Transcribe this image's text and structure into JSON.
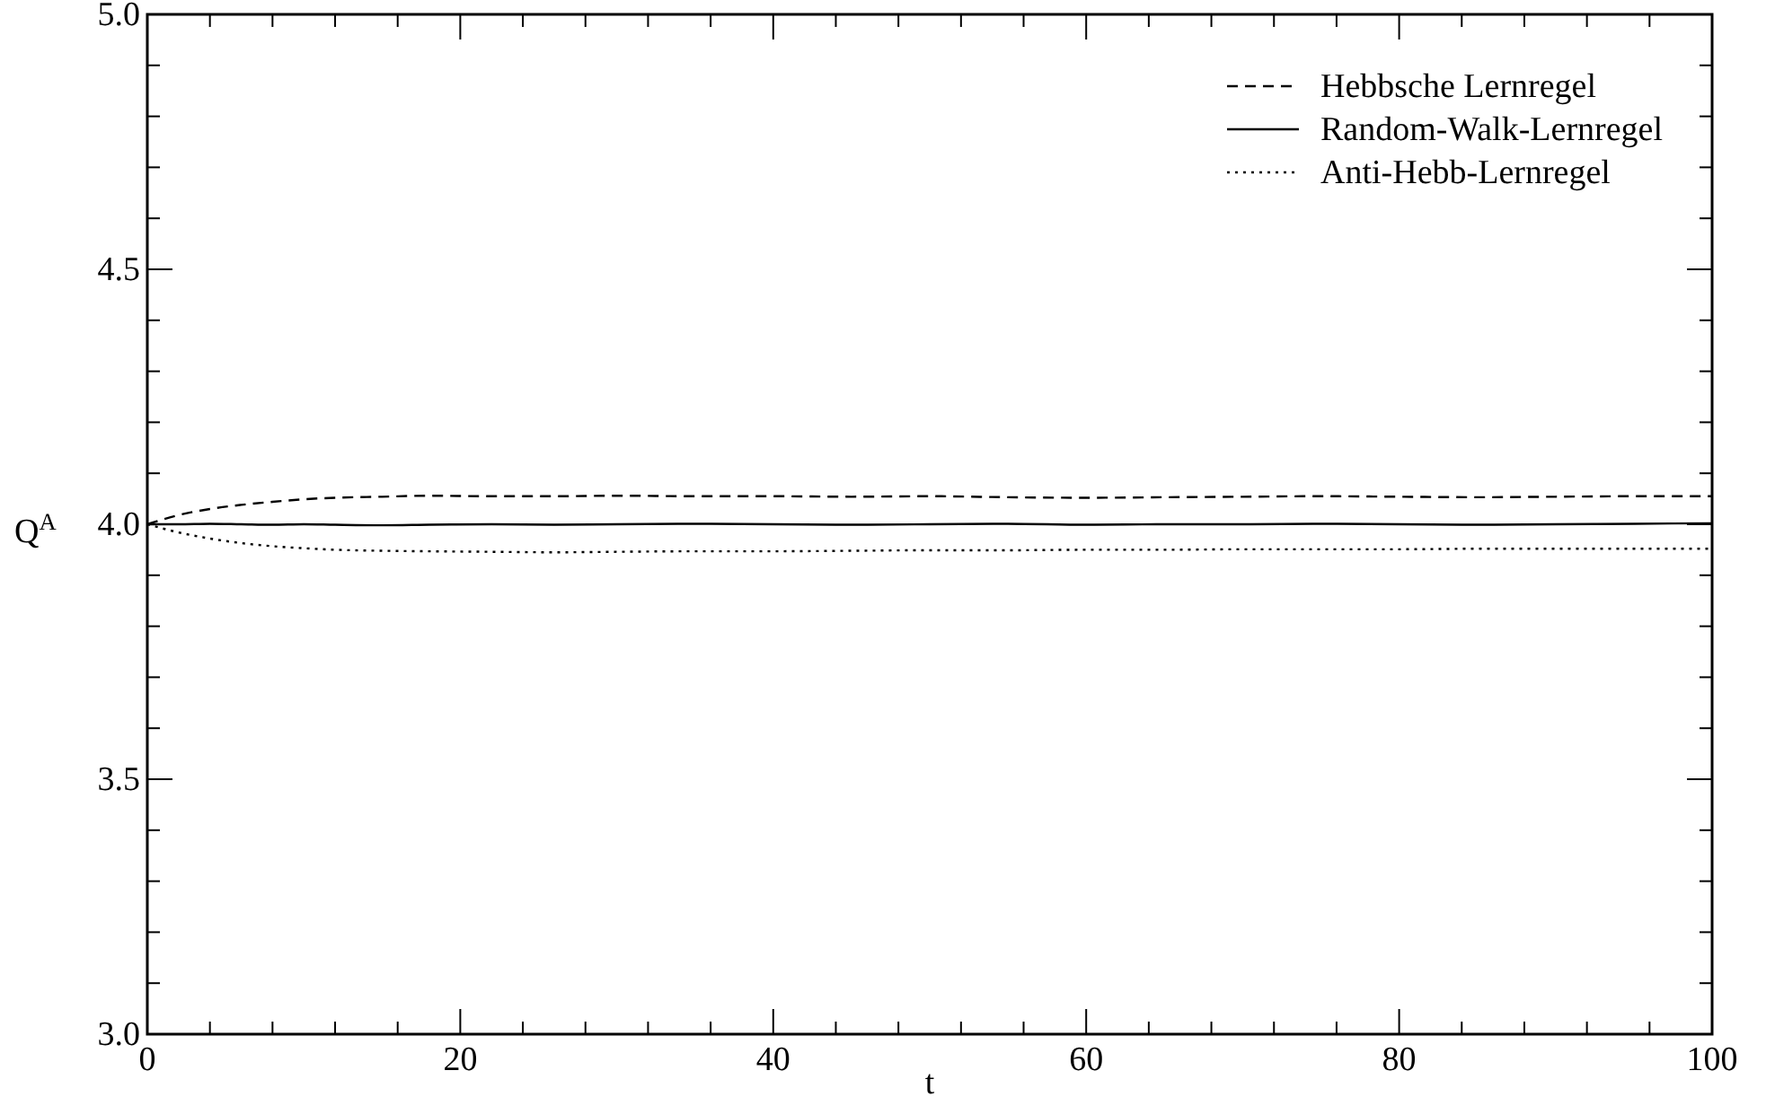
{
  "chart_data": {
    "type": "line",
    "xlabel": "t",
    "ylabel": "Q$^{A}$",
    "xlim": [
      0,
      100
    ],
    "ylim": [
      3,
      5
    ],
    "xticks": [
      0,
      {
        "value": 4,
        "label": null
      },
      {
        "value": 8,
        "label": null
      },
      {
        "value": 12,
        "label": null
      },
      {
        "value": 16,
        "label": null
      },
      20,
      {
        "value": 24,
        "label": null
      },
      {
        "value": 28,
        "label": null
      },
      {
        "value": 32,
        "label": null
      },
      {
        "value": 36,
        "label": null
      },
      40,
      {
        "value": 44,
        "label": null
      },
      {
        "value": 48,
        "label": null
      },
      {
        "value": 52,
        "label": null
      },
      {
        "value": 56,
        "label": null
      },
      60,
      {
        "value": 64,
        "label": null
      },
      {
        "value": 68,
        "label": null
      },
      {
        "value": 72,
        "label": null
      },
      {
        "value": 76,
        "label": null
      },
      80,
      {
        "value": 84,
        "label": null
      },
      {
        "value": 88,
        "label": null
      },
      {
        "value": 92,
        "label": null
      },
      {
        "value": 96,
        "label": null
      },
      100
    ],
    "yticks": [
      {
        "value": 3,
        "label": "3.0"
      },
      {
        "value": 3.1,
        "label": null
      },
      {
        "value": 3.2,
        "label": null
      },
      {
        "value": 3.3,
        "label": null
      },
      {
        "value": 3.4,
        "label": null
      },
      3.5,
      {
        "value": 3.6,
        "label": null
      },
      {
        "value": 3.7,
        "label": null
      },
      {
        "value": 3.8,
        "label": null
      },
      {
        "value": 3.9,
        "label": null
      },
      {
        "value": 4,
        "label": "4.0"
      },
      {
        "value": 4.1,
        "label": null
      },
      {
        "value": 4.2,
        "label": null
      },
      {
        "value": 4.3,
        "label": null
      },
      {
        "value": 4.4,
        "label": null
      },
      4.5,
      {
        "value": 4.6,
        "label": null
      },
      {
        "value": 4.7,
        "label": null
      },
      {
        "value": 4.8,
        "label": null
      },
      {
        "value": 4.9,
        "label": null
      },
      {
        "value": 5,
        "label": "5.0"
      }
    ],
    "x": [
      0,
      2,
      4,
      6,
      8,
      10,
      12,
      15,
      18,
      22,
      26,
      30,
      35,
      40,
      45,
      50,
      55,
      60,
      65,
      70,
      75,
      80,
      85,
      90,
      95,
      100
    ],
    "grid": false,
    "legend": "top right",
    "series": [
      {
        "name": "Hebbsche Lernregel",
        "color": "#000000",
        "line_style": "dashed",
        "values": [
          4.0,
          4.018,
          4.03,
          4.038,
          4.044,
          4.049,
          4.052,
          4.054,
          4.056,
          4.055,
          4.055,
          4.056,
          4.055,
          4.055,
          4.054,
          4.055,
          4.053,
          4.052,
          4.053,
          4.054,
          4.055,
          4.054,
          4.053,
          4.054,
          4.055,
          4.055
        ]
      },
      {
        "name": "Random-Walk-Lernregel",
        "color": "#000000",
        "line_style": "solid",
        "values": [
          4.0,
          4.0,
          4.001,
          4.0,
          3.999,
          4.0,
          3.999,
          3.998,
          3.999,
          4.0,
          3.999,
          4.0,
          4.001,
          4.0,
          3.999,
          4.0,
          4.001,
          3.999,
          4.0,
          4.0,
          4.001,
          4.0,
          3.999,
          4.0,
          4.001,
          4.002
        ]
      },
      {
        "name": "Anti-Hebb-Lernregel",
        "color": "#000000",
        "line_style": "dotted",
        "values": [
          4.0,
          3.984,
          3.972,
          3.963,
          3.957,
          3.953,
          3.95,
          3.948,
          3.947,
          3.946,
          3.945,
          3.946,
          3.947,
          3.947,
          3.948,
          3.949,
          3.949,
          3.95,
          3.95,
          3.951,
          3.951,
          3.951,
          3.952,
          3.952,
          3.952,
          3.952
        ]
      }
    ]
  }
}
